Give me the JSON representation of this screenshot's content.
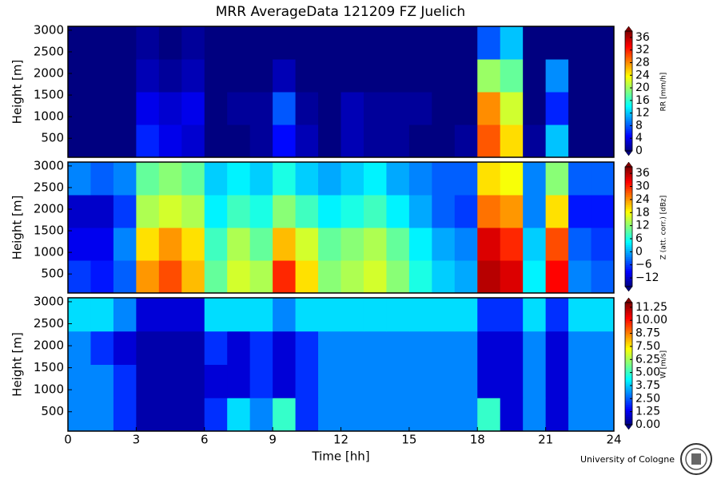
{
  "chart_data": [
    {
      "type": "heatmap",
      "title": "MRR AverageData 121209 FZ Juelich",
      "ylabel": "Height [m]",
      "colorbar_label": "RR [mm/h]",
      "colormap": "jet",
      "xlim": [
        0,
        24
      ],
      "ylim": [
        60,
        3090
      ],
      "yticks": [
        500,
        1000,
        1500,
        2000,
        2500,
        3000
      ],
      "clim": [
        0,
        38
      ],
      "cticks": [
        0,
        4,
        8,
        12,
        16,
        20,
        24,
        28,
        32,
        36
      ],
      "z": [
        [
          0,
          0,
          0,
          6,
          4,
          3,
          0,
          0,
          1,
          5,
          2,
          0,
          2,
          1,
          1,
          0,
          0,
          1,
          30,
          25,
          1,
          12,
          0,
          0
        ],
        [
          0,
          0,
          0,
          4,
          3,
          4,
          0,
          1,
          1,
          8,
          1,
          0,
          2,
          1,
          1,
          1,
          0,
          0,
          28,
          22,
          0,
          6,
          0,
          0
        ],
        [
          0,
          0,
          0,
          2,
          1,
          2,
          0,
          0,
          0,
          2,
          0,
          0,
          0,
          0,
          0,
          0,
          0,
          0,
          20,
          18,
          0,
          10,
          0,
          0
        ],
        [
          0,
          0,
          0,
          1,
          0,
          1,
          0,
          0,
          0,
          0,
          0,
          0,
          0,
          0,
          0,
          0,
          0,
          0,
          8,
          12,
          0,
          0,
          0,
          0
        ]
      ]
    },
    {
      "type": "heatmap",
      "ylabel": "Height [m]",
      "colorbar_label": "Z (att. corr.) [dBz]",
      "colormap": "jet",
      "xlim": [
        0,
        24
      ],
      "ylim": [
        60,
        3090
      ],
      "yticks": [
        500,
        1000,
        1500,
        2000,
        2500,
        3000
      ],
      "clim": [
        -16,
        39
      ],
      "cticks": [
        {
          "value": -12,
          "label": "−12"
        },
        {
          "value": -6,
          "label": "−6"
        },
        0,
        6,
        12,
        18,
        24,
        30,
        36
      ],
      "z": [
        [
          -6,
          -8,
          -4,
          24,
          28,
          22,
          10,
          16,
          14,
          30,
          20,
          12,
          14,
          16,
          12,
          6,
          2,
          0,
          36,
          34,
          4,
          32,
          -2,
          -4
        ],
        [
          -10,
          -10,
          -2,
          20,
          24,
          20,
          8,
          14,
          10,
          22,
          16,
          10,
          12,
          14,
          10,
          4,
          0,
          -2,
          34,
          30,
          2,
          28,
          -4,
          -6
        ],
        [
          -12,
          -12,
          -6,
          14,
          16,
          14,
          4,
          8,
          6,
          12,
          8,
          4,
          6,
          8,
          4,
          0,
          -4,
          -6,
          26,
          24,
          -2,
          20,
          -8,
          -8
        ],
        [
          -2,
          -4,
          -2,
          10,
          12,
          10,
          2,
          4,
          2,
          6,
          2,
          0,
          2,
          4,
          0,
          -2,
          -4,
          -4,
          20,
          18,
          -2,
          12,
          -4,
          -4
        ]
      ]
    },
    {
      "type": "heatmap",
      "ylabel": "Height [m]",
      "colorbar_label": "W [m/s]",
      "colormap": "jet",
      "xlabel": "Time [hh]",
      "xlim": [
        0,
        24
      ],
      "xticks": [
        0,
        3,
        6,
        9,
        12,
        15,
        18,
        21,
        24
      ],
      "ylim": [
        60,
        3090
      ],
      "yticks": [
        500,
        1000,
        1500,
        2000,
        2500,
        3000
      ],
      "clim": [
        0,
        11.7
      ],
      "cticks": [
        {
          "value": 0,
          "label": "0.00"
        },
        {
          "value": 1.25,
          "label": "1.25"
        },
        {
          "value": 2.5,
          "label": "2.50"
        },
        {
          "value": 3.75,
          "label": "3.75"
        },
        {
          "value": 5,
          "label": "5.00"
        },
        {
          "value": 6.25,
          "label": "6.25"
        },
        {
          "value": 7.5,
          "label": "7.50"
        },
        {
          "value": 8.75,
          "label": "8.75"
        },
        {
          "value": 10,
          "label": "10.00"
        },
        {
          "value": 11.25,
          "label": "11.25"
        }
      ],
      "z": [
        [
          3,
          3,
          2,
          0.5,
          0.5,
          0.5,
          2,
          4,
          3,
          5,
          2,
          3,
          3,
          3,
          3,
          3,
          3,
          3,
          5,
          1,
          3,
          1,
          3,
          3
        ],
        [
          3,
          3,
          2,
          0.5,
          0.5,
          0.5,
          1,
          1,
          2,
          1,
          2,
          3,
          3,
          3,
          3,
          3,
          3,
          3,
          1,
          1,
          3,
          1,
          3,
          3
        ],
        [
          3,
          2,
          1,
          0.5,
          0.5,
          0.5,
          2,
          1,
          2,
          1,
          2,
          3,
          3,
          3,
          3,
          3,
          3,
          3,
          1,
          1,
          3,
          1,
          3,
          3
        ],
        [
          4,
          4,
          3,
          1,
          1,
          1,
          4,
          4,
          4,
          3,
          4,
          4,
          4,
          4,
          4,
          4,
          4,
          4,
          2,
          2,
          4,
          2,
          4,
          4
        ]
      ]
    }
  ],
  "footer": "University of Cologne"
}
